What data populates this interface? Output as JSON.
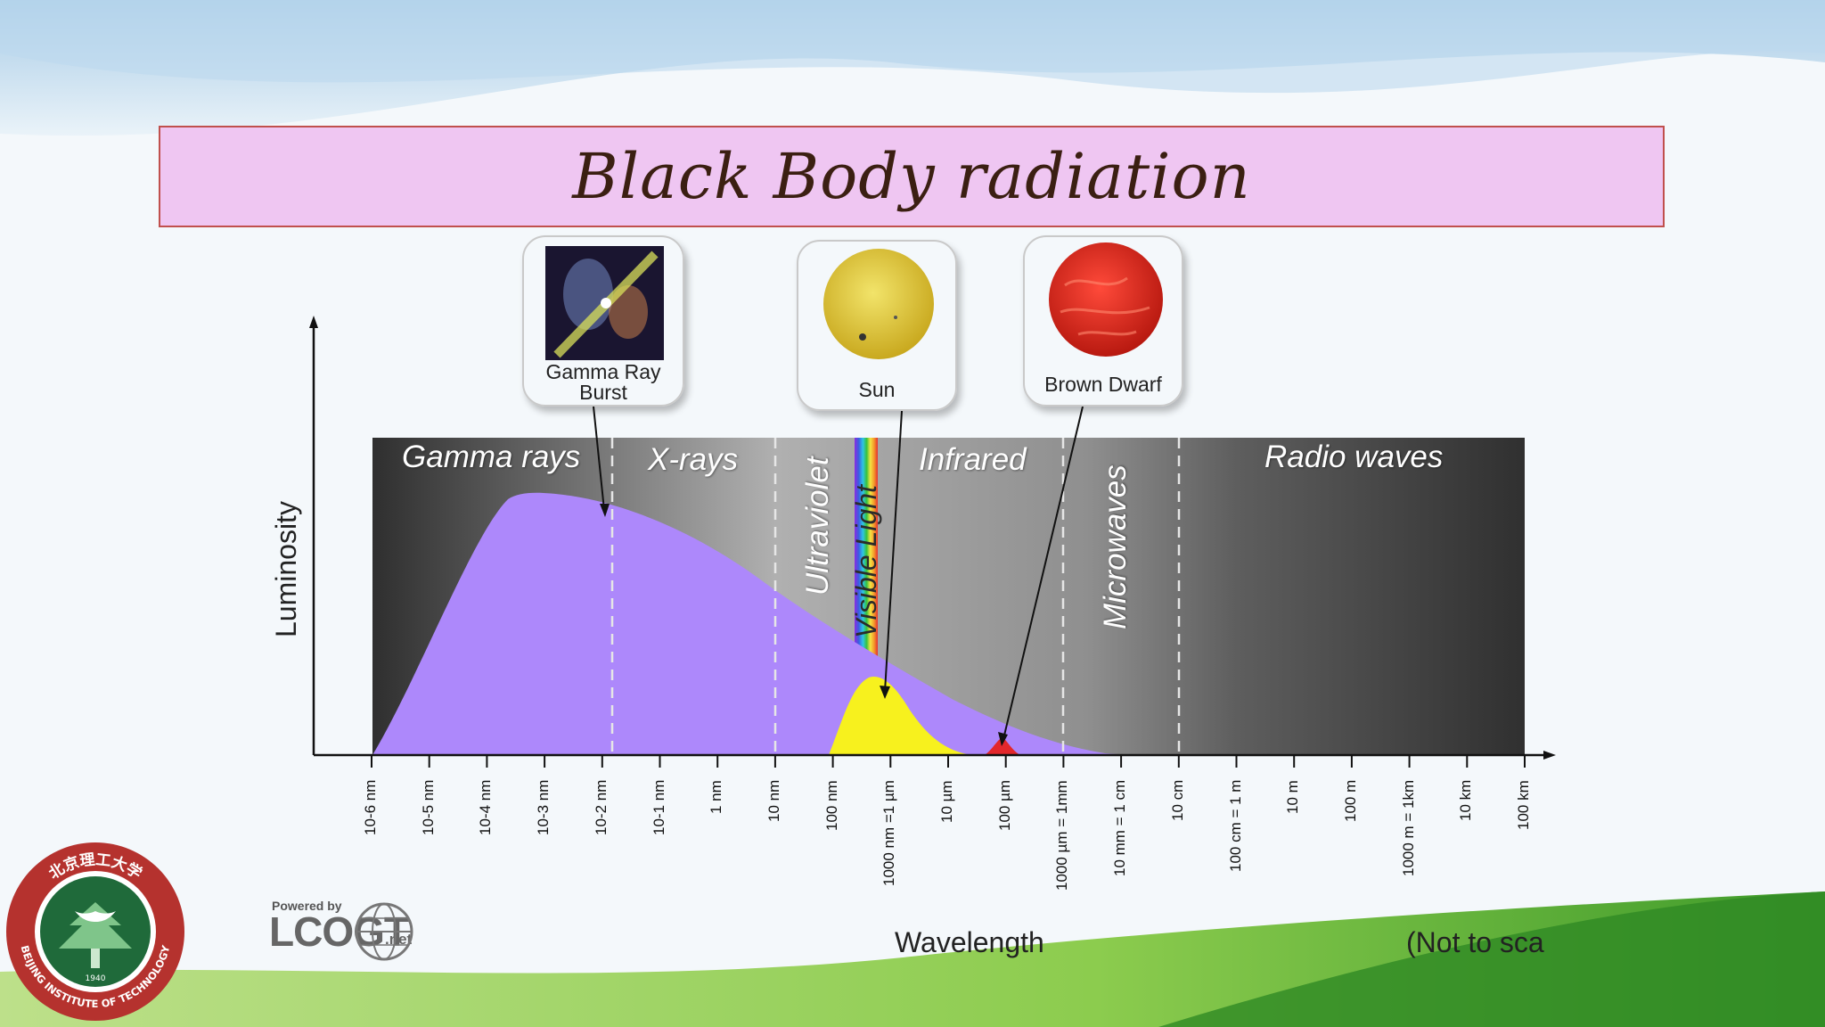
{
  "title": "Black Body radiation",
  "cards": [
    {
      "label_line1": "Gamma Ray",
      "label_line2": "Burst"
    },
    {
      "label_line1": "Sun"
    },
    {
      "label_line1": "Brown Dwarf"
    }
  ],
  "bands": [
    "Gamma rays",
    "X-rays",
    "Ultraviolet",
    "Visible Light",
    "Infrared",
    "Microwaves",
    "Radio waves"
  ],
  "y_axis_title": "Luminosity",
  "x_axis_title": "Wavelength",
  "scale_note": "(Not to sca",
  "ticks": [
    "10-6 nm",
    "10-5 nm",
    "10-4 nm",
    "10-3 nm",
    "10-2 nm",
    "10-1 nm",
    "1 nm",
    "10 nm",
    "100 nm",
    "1000 nm =1 µm",
    "10 µm",
    "100 µm",
    "1000 µm = 1mm",
    "10 mm = 1 cm",
    "10 cm",
    "100 cm = 1 m",
    "10 m",
    "100 m",
    "1000 m = 1km",
    "10 km",
    "100 km"
  ],
  "logo": {
    "powered_by": "Powered by",
    "name": "LCOGT",
    "suffix": ".net",
    "school_top": "北京理工大学",
    "school_bottom": "BEIJING INSTITUTE OF TECHNOLOGY",
    "school_year": "1940"
  },
  "colors": {
    "banner": "#efc6f2",
    "banner_border": "#c0504d",
    "gamma_curve": "#ad88fb",
    "sun_curve": "#f7f11e",
    "brown_dwarf_curve": "#e3272b"
  }
}
